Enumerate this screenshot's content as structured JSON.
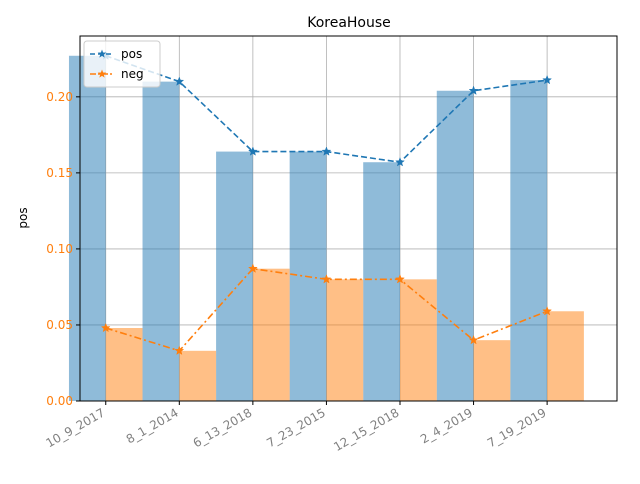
{
  "chart_data": {
    "type": "bar",
    "title": "KoreaHouse",
    "xlabel": "",
    "ylabel": "pos",
    "categories": [
      "10_9_2017",
      "8_1_2014",
      "6_13_2018",
      "7_23_2015",
      "12_15_2018",
      "2_4_2019",
      "7_19_2019"
    ],
    "ylim": [
      0,
      0.24
    ],
    "yticks": [
      "0.00",
      "0.05",
      "0.10",
      "0.15",
      "0.20"
    ],
    "grid": true,
    "legend_position": "top-left",
    "series": [
      {
        "name": "pos",
        "values": [
          0.227,
          0.21,
          0.164,
          0.164,
          0.157,
          0.204,
          0.211
        ],
        "bar_color": "#1f77b4",
        "line_color": "#1f77b4",
        "line_style": "dashed",
        "marker": "star"
      },
      {
        "name": "neg",
        "values": [
          0.048,
          0.033,
          0.087,
          0.08,
          0.08,
          0.04,
          0.059
        ],
        "bar_color": "#ff7f0e",
        "line_color": "#ff7f0e",
        "line_style": "dash-dot",
        "marker": "star"
      }
    ],
    "colors": {
      "ytick_labels": "#ff7f0e",
      "xtick_labels": "#808080",
      "grid": "#b0b0b0",
      "axes": "#000000"
    }
  }
}
